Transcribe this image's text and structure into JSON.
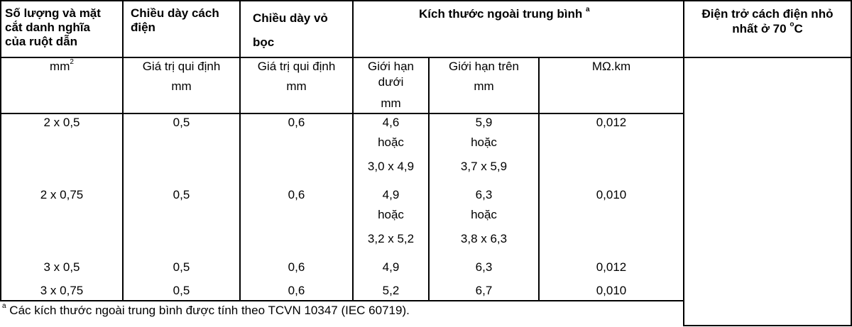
{
  "header": {
    "col1": [
      "Số lượng và mặt",
      "cắt danh nghĩa",
      "của ruột dẫn"
    ],
    "col2": [
      "Chiều dày cách",
      "điện"
    ],
    "col3": [
      "Chiều dày vỏ",
      "bọc"
    ],
    "col4": "Kích thước ngoài trung bình",
    "col4_sup": "a",
    "col5_line1": "Điện trở cách điện nhỏ",
    "col5_line2_pre": "nhất ở 70 ",
    "col5_deg": "o",
    "col5_line2_post": "C"
  },
  "units": {
    "u1": "mm",
    "u1_sup": "2",
    "u2": [
      "Giá trị qui định",
      "mm"
    ],
    "u3": [
      "Giá trị qui định",
      "mm"
    ],
    "u4": [
      "Giới hạn",
      "dưới",
      "mm"
    ],
    "u5": [
      "Giới hạn trên",
      "mm"
    ],
    "u6": "MΩ.km"
  },
  "rows": [
    {
      "size": "2 x 0,5",
      "insulation": "0,5",
      "sheath": "0,6",
      "lower": [
        "4,6",
        "hoặc",
        "3,0 x 4,9"
      ],
      "upper": [
        "5,9",
        "hoặc",
        "3,7 x 5,9"
      ],
      "resistance": "0,012"
    },
    {
      "size": "2 x 0,75",
      "insulation": "0,5",
      "sheath": "0,6",
      "lower": [
        "4,9",
        "hoặc",
        "3,2 x 5,2"
      ],
      "upper": [
        "6,3",
        "hoặc",
        "3,8 x 6,3"
      ],
      "resistance": "0,010"
    },
    {
      "size": "3 x 0,5",
      "insulation": "0,5",
      "sheath": "0,6",
      "lower": [
        "4,9"
      ],
      "upper": [
        "6,3"
      ],
      "resistance": "0,012"
    },
    {
      "size": "3 x 0,75",
      "insulation": "0,5",
      "sheath": "0,6",
      "lower": [
        "5,2"
      ],
      "upper": [
        "6,7"
      ],
      "resistance": "0,010"
    }
  ],
  "footnote": {
    "sup": "a",
    "text": " Các kích thước ngoài trung bình được tính theo TCVN 10347 (IEC 60719)."
  }
}
